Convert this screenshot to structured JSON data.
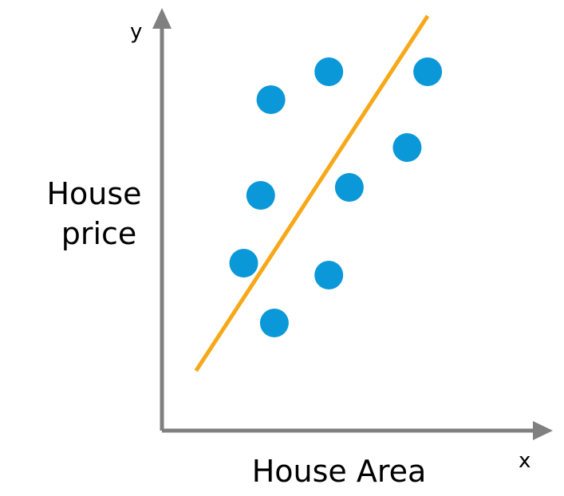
{
  "chart_data": {
    "type": "scatter",
    "title": "",
    "xlabel": "House Area",
    "ylabel_lines": [
      "House",
      "price"
    ],
    "x_axis_letter": "x",
    "y_axis_letter": "y",
    "xlim": [
      0,
      10
    ],
    "ylim": [
      0,
      10
    ],
    "grid": false,
    "legend": "none",
    "colors": {
      "axis": "#808080",
      "points": "#0a98d8",
      "fit_line": "#f7a818"
    },
    "series": [
      {
        "values": [
          {
            "x": 3.2,
            "y": 8.3
          },
          {
            "x": 4.9,
            "y": 9.0
          },
          {
            "x": 7.8,
            "y": 9.0
          },
          {
            "x": 7.2,
            "y": 7.1
          },
          {
            "x": 2.9,
            "y": 5.9
          },
          {
            "x": 5.5,
            "y": 6.1
          },
          {
            "x": 2.4,
            "y": 4.2
          },
          {
            "x": 4.9,
            "y": 3.9
          },
          {
            "x": 3.3,
            "y": 2.7
          }
        ]
      }
    ],
    "fit_line": {
      "x": [
        1.0,
        7.8
      ],
      "y": [
        1.5,
        10.4
      ]
    }
  }
}
